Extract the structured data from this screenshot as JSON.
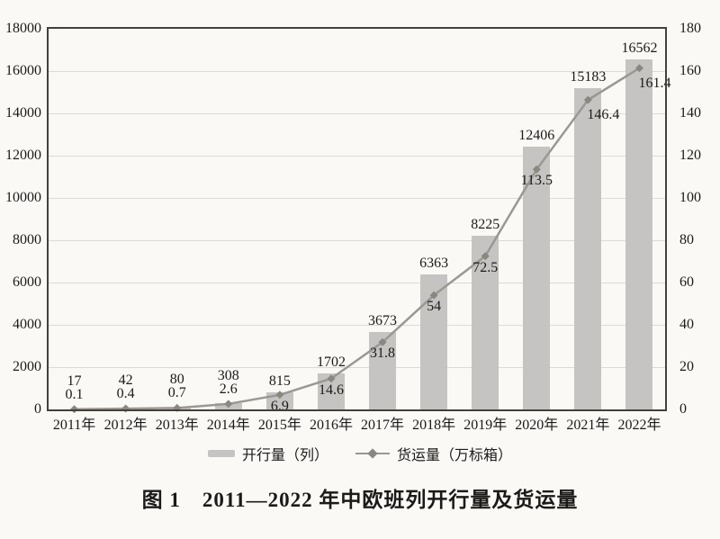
{
  "chart_data": {
    "type": "bar",
    "title": "图 1　2011—2022 年中欧班列开行量及货运量",
    "categories": [
      "2011年",
      "2012年",
      "2013年",
      "2014年",
      "2015年",
      "2016年",
      "2017年",
      "2018年",
      "2019年",
      "2020年",
      "2021年",
      "2022年"
    ],
    "series": [
      {
        "name": "开行量（列）",
        "type": "bar",
        "axis": "left",
        "values": [
          17,
          42,
          80,
          308,
          815,
          1702,
          3673,
          6363,
          8225,
          12406,
          15183,
          16562
        ]
      },
      {
        "name": "货运量（万标箱）",
        "type": "line",
        "axis": "right",
        "values": [
          0.1,
          0.4,
          0.7,
          2.6,
          6.9,
          14.6,
          31.8,
          54,
          72.5,
          113.5,
          146.4,
          161.4
        ]
      }
    ],
    "left_axis": {
      "min": 0,
      "max": 18000,
      "step": 2000
    },
    "right_axis": {
      "min": 0,
      "max": 180,
      "step": 20
    },
    "grid": true,
    "legend_position": "bottom"
  },
  "colors": {
    "background": "#faf9f6",
    "bar": "#c5c4c2",
    "line": "#9b9894",
    "marker": "#8a8781",
    "grid": "#dcdad6",
    "border": "#45403b",
    "text": "#1c1a18"
  }
}
